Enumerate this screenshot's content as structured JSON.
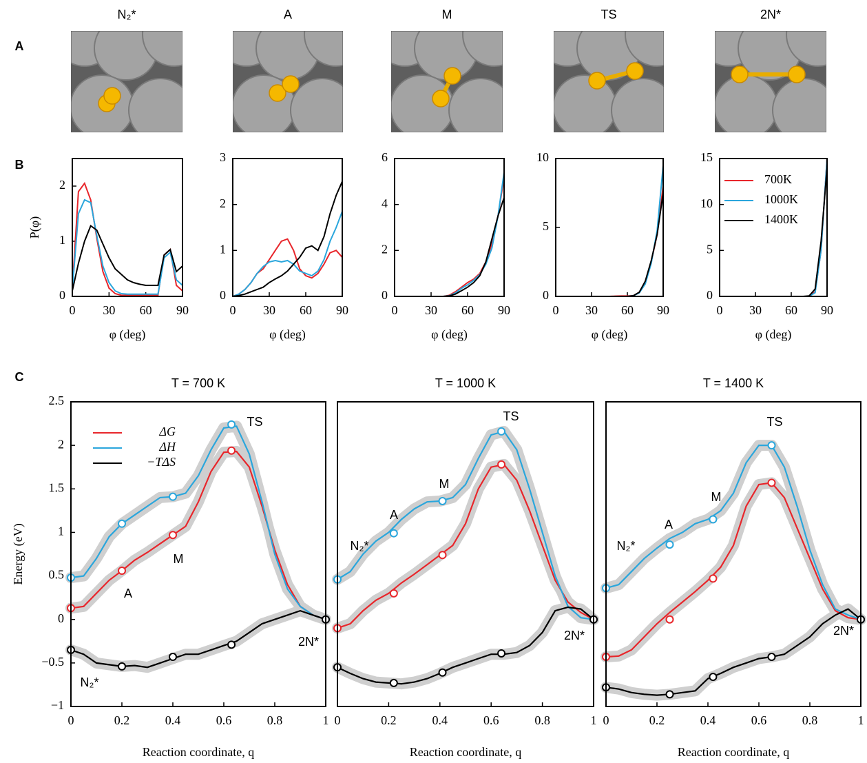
{
  "panel_labels": [
    "A",
    "B",
    "C"
  ],
  "structures": [
    "N₂*",
    "A",
    "M",
    "TS",
    "2N*"
  ],
  "chart_data": [
    {
      "type": "line",
      "ylabel": "P(φ)",
      "xlabel": "φ (deg)",
      "x": [
        0,
        5,
        10,
        15,
        20,
        25,
        30,
        35,
        40,
        45,
        50,
        55,
        60,
        65,
        70,
        75,
        80,
        85,
        90
      ],
      "xlim": [
        0,
        90
      ],
      "xticks": [
        0,
        30,
        60,
        90
      ],
      "ylim": [
        0,
        2.5
      ],
      "yticks": [
        0,
        1,
        2
      ],
      "series": [
        {
          "color": "#e8262b",
          "values": [
            0.15,
            1.9,
            2.05,
            1.75,
            1.05,
            0.45,
            0.15,
            0.05,
            0.02,
            0.02,
            0.02,
            0.02,
            0.02,
            0.02,
            0.02,
            0.75,
            0.85,
            0.2,
            0.1
          ]
        },
        {
          "color": "#2aa6dc",
          "values": [
            0.12,
            1.5,
            1.75,
            1.7,
            1.1,
            0.55,
            0.25,
            0.1,
            0.05,
            0.04,
            0.04,
            0.04,
            0.04,
            0.04,
            0.04,
            0.7,
            0.8,
            0.3,
            0.2
          ]
        },
        {
          "color": "#000000",
          "values": [
            0.1,
            0.6,
            1.0,
            1.28,
            1.2,
            0.95,
            0.7,
            0.5,
            0.4,
            0.3,
            0.25,
            0.22,
            0.2,
            0.2,
            0.2,
            0.75,
            0.85,
            0.45,
            0.55
          ]
        }
      ]
    },
    {
      "type": "line",
      "xlabel": "φ (deg)",
      "x": [
        0,
        5,
        10,
        15,
        20,
        25,
        30,
        35,
        40,
        45,
        50,
        55,
        60,
        65,
        70,
        75,
        80,
        85,
        90
      ],
      "xlim": [
        0,
        90
      ],
      "xticks": [
        0,
        30,
        60,
        90
      ],
      "ylim": [
        0,
        3
      ],
      "yticks": [
        0,
        1,
        2,
        3
      ],
      "series": [
        {
          "color": "#e8262b",
          "values": [
            0,
            0.05,
            0.15,
            0.3,
            0.5,
            0.6,
            0.8,
            1.0,
            1.2,
            1.25,
            1.0,
            0.6,
            0.45,
            0.4,
            0.5,
            0.7,
            0.95,
            1.0,
            0.85
          ]
        },
        {
          "color": "#2aa6dc",
          "values": [
            0,
            0.05,
            0.15,
            0.3,
            0.5,
            0.65,
            0.75,
            0.78,
            0.75,
            0.78,
            0.7,
            0.55,
            0.5,
            0.45,
            0.55,
            0.8,
            1.2,
            1.5,
            1.85
          ]
        },
        {
          "color": "#000000",
          "values": [
            0,
            0.02,
            0.05,
            0.1,
            0.15,
            0.2,
            0.3,
            0.38,
            0.45,
            0.55,
            0.7,
            0.85,
            1.05,
            1.1,
            1.0,
            1.3,
            1.8,
            2.2,
            2.5
          ]
        }
      ]
    },
    {
      "type": "line",
      "xlabel": "φ (deg)",
      "x": [
        0,
        5,
        10,
        15,
        20,
        25,
        30,
        35,
        40,
        45,
        50,
        55,
        60,
        65,
        70,
        75,
        80,
        85,
        90
      ],
      "xlim": [
        0,
        90
      ],
      "xticks": [
        0,
        30,
        60,
        90
      ],
      "ylim": [
        0,
        6
      ],
      "yticks": [
        0,
        2,
        4,
        6
      ],
      "series": [
        {
          "color": "#e8262b",
          "values": [
            0,
            0,
            0,
            0,
            0,
            0,
            0,
            0,
            0,
            0.05,
            0.2,
            0.4,
            0.6,
            0.75,
            1.0,
            1.5,
            2.3,
            3.5,
            5.2
          ]
        },
        {
          "color": "#2aa6dc",
          "values": [
            0,
            0,
            0,
            0,
            0,
            0,
            0,
            0,
            0,
            0.03,
            0.15,
            0.35,
            0.5,
            0.7,
            0.95,
            1.4,
            2.1,
            3.5,
            5.4
          ]
        },
        {
          "color": "#000000",
          "values": [
            0,
            0,
            0,
            0,
            0,
            0,
            0,
            0,
            0,
            0.02,
            0.1,
            0.25,
            0.4,
            0.6,
            0.9,
            1.5,
            2.5,
            3.5,
            4.3
          ]
        }
      ]
    },
    {
      "type": "line",
      "xlabel": "φ (deg)",
      "x": [
        0,
        5,
        10,
        15,
        20,
        25,
        30,
        35,
        40,
        45,
        50,
        55,
        60,
        65,
        70,
        75,
        80,
        85,
        90
      ],
      "xlim": [
        0,
        90
      ],
      "xticks": [
        0,
        30,
        60,
        90
      ],
      "ylim": [
        0,
        10
      ],
      "yticks": [
        0,
        5,
        10
      ],
      "series": [
        {
          "color": "#e8262b",
          "values": [
            0,
            0,
            0,
            0,
            0,
            0,
            0,
            0,
            0,
            0,
            0.02,
            0.03,
            0.03,
            0.05,
            0.3,
            1.0,
            2.5,
            4.5,
            8.0
          ]
        },
        {
          "color": "#2aa6dc",
          "values": [
            0,
            0,
            0,
            0,
            0,
            0,
            0,
            0,
            0,
            0,
            0,
            0,
            0,
            0.05,
            0.25,
            0.9,
            2.4,
            4.8,
            9.5
          ]
        },
        {
          "color": "#000000",
          "values": [
            0,
            0,
            0,
            0,
            0,
            0,
            0,
            0,
            0,
            0,
            0,
            0,
            0,
            0.05,
            0.3,
            1.1,
            2.6,
            4.5,
            7.5
          ]
        }
      ]
    },
    {
      "type": "line",
      "xlabel": "φ (deg)",
      "x": [
        0,
        5,
        10,
        15,
        20,
        25,
        30,
        35,
        40,
        45,
        50,
        55,
        60,
        65,
        70,
        75,
        80,
        85,
        90
      ],
      "xlim": [
        0,
        90
      ],
      "xticks": [
        0,
        30,
        60,
        90
      ],
      "ylim": [
        0,
        15
      ],
      "yticks": [
        0,
        5,
        10,
        15
      ],
      "series": [
        {
          "name": "700K",
          "color": "#e8262b",
          "values": [
            0,
            0,
            0,
            0,
            0,
            0,
            0,
            0,
            0,
            0,
            0,
            0,
            0,
            0,
            0,
            0,
            0.5,
            5,
            15
          ]
        },
        {
          "name": "1000K",
          "color": "#2aa6dc",
          "values": [
            0,
            0,
            0,
            0,
            0,
            0,
            0,
            0,
            0,
            0,
            0,
            0,
            0,
            0,
            0,
            0,
            0.4,
            5,
            15
          ]
        },
        {
          "name": "1400K",
          "color": "#000000",
          "values": [
            0,
            0,
            0,
            0,
            0,
            0,
            0,
            0,
            0,
            0,
            0,
            0,
            0,
            0,
            0,
            0.05,
            0.8,
            6,
            14
          ]
        }
      ]
    },
    {
      "type": "line",
      "title": "T = 700 K",
      "ylabel": "Energy (eV)",
      "xlabel": "Reaction coordinate, q",
      "band": true,
      "x": [
        0,
        0.05,
        0.1,
        0.15,
        0.2,
        0.25,
        0.3,
        0.35,
        0.4,
        0.45,
        0.5,
        0.55,
        0.6,
        0.65,
        0.7,
        0.75,
        0.8,
        0.85,
        0.9,
        0.95,
        1
      ],
      "xlim": [
        0,
        1
      ],
      "xticks": [
        0,
        0.2,
        0.4,
        0.6,
        0.8,
        1
      ],
      "ylim": [
        -1,
        2.5
      ],
      "yticks": [
        {
          "value": -1,
          "label": "−1"
        },
        {
          "value": -0.5,
          "label": "−0.5"
        },
        0,
        0.5,
        1,
        1.5,
        2,
        2.5
      ],
      "annotations": [
        "TS",
        "M",
        "A",
        "N₂*",
        "2N*"
      ],
      "series": [
        {
          "name": "ΔG",
          "color": "#e8262b",
          "values": [
            0.13,
            0.15,
            0.3,
            0.45,
            0.56,
            0.68,
            0.77,
            0.87,
            0.97,
            1.07,
            1.35,
            1.7,
            1.92,
            1.93,
            1.75,
            1.3,
            0.8,
            0.4,
            0.15,
            0.05,
            0
          ],
          "marker_x": [
            0,
            0.2,
            0.4,
            0.63,
            1
          ],
          "marker_values": [
            0.13,
            0.56,
            0.97,
            1.94,
            0
          ]
        },
        {
          "name": "ΔH",
          "color": "#2aa6dc",
          "values": [
            0.48,
            0.5,
            0.7,
            0.95,
            1.1,
            1.2,
            1.3,
            1.4,
            1.41,
            1.45,
            1.65,
            1.95,
            2.2,
            2.22,
            1.9,
            1.35,
            0.75,
            0.35,
            0.15,
            0.05,
            0
          ],
          "marker_x": [
            0,
            0.2,
            0.4,
            0.63,
            1
          ],
          "marker_values": [
            0.48,
            1.1,
            1.41,
            2.24,
            0
          ]
        },
        {
          "name": "−TΔS",
          "color": "#000000",
          "values": [
            -0.35,
            -0.4,
            -0.5,
            -0.52,
            -0.54,
            -0.53,
            -0.55,
            -0.5,
            -0.45,
            -0.4,
            -0.4,
            -0.35,
            -0.3,
            -0.25,
            -0.15,
            -0.05,
            0,
            0.05,
            0.1,
            0.05,
            0
          ],
          "marker_x": [
            0,
            0.2,
            0.4,
            0.63,
            1
          ],
          "marker_values": [
            -0.35,
            -0.54,
            -0.43,
            -0.29,
            0
          ]
        }
      ]
    },
    {
      "type": "line",
      "title": "T = 1000 K",
      "xlabel": "Reaction coordinate, q",
      "band": true,
      "x": [
        0,
        0.05,
        0.1,
        0.15,
        0.2,
        0.25,
        0.3,
        0.35,
        0.4,
        0.45,
        0.5,
        0.55,
        0.6,
        0.65,
        0.7,
        0.75,
        0.8,
        0.85,
        0.9,
        0.95,
        1
      ],
      "xlim": [
        0,
        1
      ],
      "xticks": [
        0,
        0.2,
        0.4,
        0.6,
        0.8,
        1
      ],
      "ylim": [
        -1,
        2.5
      ],
      "annotations": [
        "N₂*",
        "A",
        "M",
        "TS",
        "2N*"
      ],
      "series": [
        {
          "color": "#e8262b",
          "values": [
            -0.1,
            -0.05,
            0.1,
            0.22,
            0.3,
            0.42,
            0.52,
            0.63,
            0.74,
            0.85,
            1.1,
            1.5,
            1.75,
            1.78,
            1.6,
            1.25,
            0.85,
            0.45,
            0.2,
            0.08,
            0
          ],
          "marker_x": [
            0,
            0.22,
            0.41,
            0.64,
            1
          ],
          "marker_values": [
            -0.1,
            0.3,
            0.74,
            1.78,
            0
          ]
        },
        {
          "color": "#2aa6dc",
          "values": [
            0.46,
            0.55,
            0.75,
            0.9,
            1.0,
            1.15,
            1.27,
            1.35,
            1.36,
            1.4,
            1.55,
            1.85,
            2.12,
            2.16,
            1.95,
            1.5,
            1.0,
            0.5,
            0.15,
            0.02,
            0
          ],
          "marker_x": [
            0,
            0.22,
            0.41,
            0.64,
            1
          ],
          "marker_values": [
            0.46,
            0.99,
            1.36,
            2.16,
            0
          ]
        },
        {
          "color": "#000000",
          "values": [
            -0.55,
            -0.62,
            -0.68,
            -0.72,
            -0.73,
            -0.74,
            -0.72,
            -0.68,
            -0.62,
            -0.55,
            -0.5,
            -0.45,
            -0.4,
            -0.4,
            -0.38,
            -0.3,
            -0.15,
            0.1,
            0.14,
            0.12,
            0
          ],
          "marker_x": [
            0,
            0.22,
            0.41,
            0.64,
            1
          ],
          "marker_values": [
            -0.55,
            -0.73,
            -0.61,
            -0.39,
            0
          ]
        }
      ]
    },
    {
      "type": "line",
      "title": "T = 1400 K",
      "xlabel": "Reaction coordinate, q",
      "band": true,
      "x": [
        0,
        0.05,
        0.1,
        0.15,
        0.2,
        0.25,
        0.3,
        0.35,
        0.4,
        0.45,
        0.5,
        0.55,
        0.6,
        0.65,
        0.7,
        0.75,
        0.8,
        0.85,
        0.9,
        0.95,
        1
      ],
      "xlim": [
        0,
        1
      ],
      "xticks": [
        0,
        0.2,
        0.4,
        0.6,
        0.8,
        1
      ],
      "ylim": [
        -1,
        2.5
      ],
      "annotations": [
        "N₂*",
        "A",
        "M",
        "TS",
        "2N*"
      ],
      "series": [
        {
          "color": "#e8262b",
          "values": [
            -0.43,
            -0.42,
            -0.35,
            -0.2,
            -0.05,
            0.08,
            0.2,
            0.32,
            0.45,
            0.6,
            0.85,
            1.3,
            1.55,
            1.57,
            1.4,
            1.05,
            0.7,
            0.35,
            0.1,
            0.02,
            0
          ],
          "marker_x": [
            0,
            0.25,
            0.42,
            0.65,
            1
          ],
          "marker_values": [
            -0.43,
            0,
            0.47,
            1.57,
            0
          ]
        },
        {
          "color": "#2aa6dc",
          "values": [
            0.36,
            0.4,
            0.55,
            0.7,
            0.82,
            0.93,
            1.0,
            1.1,
            1.15,
            1.25,
            1.45,
            1.8,
            2.0,
            2.0,
            1.75,
            1.3,
            0.8,
            0.4,
            0.12,
            0.05,
            0
          ],
          "marker_x": [
            0,
            0.25,
            0.42,
            0.65,
            1
          ],
          "marker_values": [
            0.36,
            0.86,
            1.15,
            2.0,
            0
          ]
        },
        {
          "color": "#000000",
          "values": [
            -0.78,
            -0.8,
            -0.84,
            -0.86,
            -0.87,
            -0.86,
            -0.84,
            -0.82,
            -0.68,
            -0.62,
            -0.55,
            -0.5,
            -0.45,
            -0.43,
            -0.4,
            -0.3,
            -0.2,
            -0.05,
            0.05,
            0.12,
            0
          ],
          "marker_x": [
            0,
            0.25,
            0.42,
            0.65,
            1
          ],
          "marker_values": [
            -0.78,
            -0.86,
            -0.66,
            -0.43,
            0
          ]
        }
      ]
    }
  ]
}
